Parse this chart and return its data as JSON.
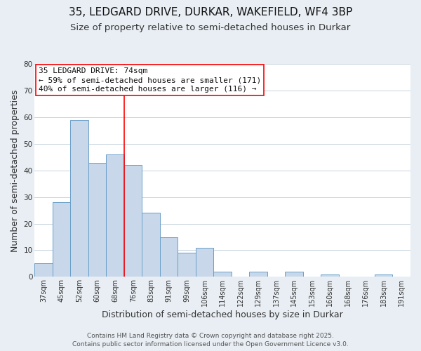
{
  "title": "35, LEDGARD DRIVE, DURKAR, WAKEFIELD, WF4 3BP",
  "subtitle": "Size of property relative to semi-detached houses in Durkar",
  "xlabel": "Distribution of semi-detached houses by size in Durkar",
  "ylabel": "Number of semi-detached properties",
  "bin_labels": [
    "37sqm",
    "45sqm",
    "52sqm",
    "60sqm",
    "68sqm",
    "76sqm",
    "83sqm",
    "91sqm",
    "99sqm",
    "106sqm",
    "114sqm",
    "122sqm",
    "129sqm",
    "137sqm",
    "145sqm",
    "153sqm",
    "160sqm",
    "168sqm",
    "176sqm",
    "183sqm",
    "191sqm"
  ],
  "bar_heights": [
    5,
    28,
    59,
    43,
    46,
    42,
    24,
    15,
    9,
    11,
    2,
    0,
    2,
    0,
    2,
    0,
    1,
    0,
    0,
    1,
    0
  ],
  "bar_color": "#c8d8ea",
  "bar_edgecolor": "#6a9fc8",
  "highlight_bin_index": 5,
  "ylim": [
    0,
    80
  ],
  "yticks": [
    0,
    10,
    20,
    30,
    40,
    50,
    60,
    70,
    80
  ],
  "annotation_title": "35 LEDGARD DRIVE: 74sqm",
  "annotation_line1": "← 59% of semi-detached houses are smaller (171)",
  "annotation_line2": "40% of semi-detached houses are larger (116) →",
  "footer1": "Contains HM Land Registry data © Crown copyright and database right 2025.",
  "footer2": "Contains public sector information licensed under the Open Government Licence v3.0.",
  "background_color": "#e8eef4",
  "plot_bg_color": "#ffffff",
  "grid_color": "#c8d4de",
  "title_fontsize": 11,
  "subtitle_fontsize": 9.5,
  "axis_label_fontsize": 9,
  "tick_fontsize": 7,
  "annotation_fontsize": 8,
  "footer_fontsize": 6.5
}
